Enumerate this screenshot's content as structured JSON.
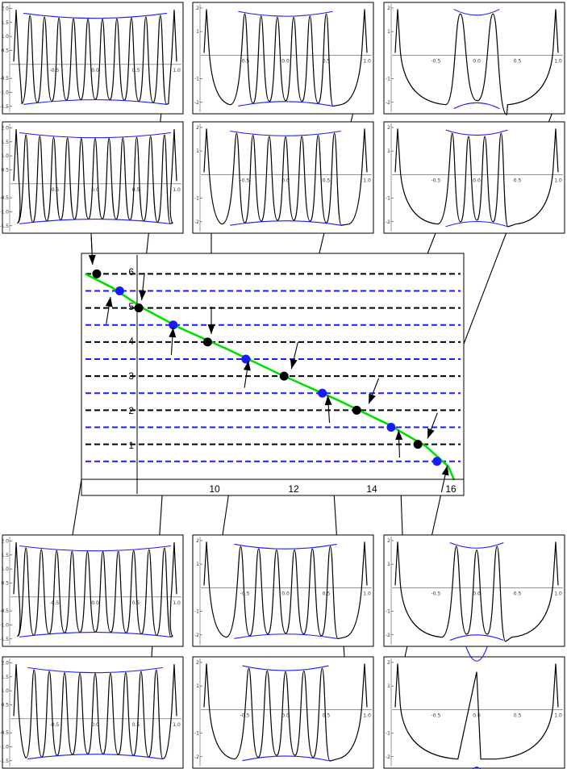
{
  "main_plot": {
    "x_ticks": [
      "10",
      "12",
      "14",
      "16"
    ],
    "y_ticks": [
      "1",
      "2",
      "3",
      "4",
      "5",
      "6"
    ]
  },
  "chart_data": {
    "type": "line",
    "xlim": [
      6.6,
      16.6
    ],
    "ylim": [
      -0.5,
      6.6
    ],
    "series": [
      {
        "values": [
          [
            6.7,
            6.0
          ],
          [
            7.4,
            5.6
          ],
          [
            8.2,
            5.0
          ],
          [
            9.2,
            4.4
          ],
          [
            10.4,
            3.8
          ],
          [
            11.8,
            3.05
          ],
          [
            13.3,
            2.3
          ],
          [
            14.6,
            1.6
          ],
          [
            15.6,
            0.95
          ],
          [
            16.2,
            0.35
          ],
          [
            16.35,
            -0.05
          ]
        ]
      }
    ],
    "black_levels": [
      1,
      2,
      3,
      4,
      5,
      6
    ],
    "blue_levels": [
      0.5,
      1.5,
      2.5,
      3.5,
      4.5,
      5.5
    ],
    "black_points": [
      [
        7.0,
        6.0
      ],
      [
        8.1,
        5.0
      ],
      [
        9.9,
        4.0
      ],
      [
        11.9,
        3.0
      ],
      [
        13.8,
        2.0
      ],
      [
        15.4,
        1.0
      ]
    ],
    "blue_points": [
      [
        7.6,
        5.5
      ],
      [
        9.0,
        4.5
      ],
      [
        10.9,
        3.5
      ],
      [
        12.9,
        2.5
      ],
      [
        14.7,
        1.5
      ],
      [
        15.9,
        0.5
      ]
    ]
  },
  "panels": [
    {
      "id": "p1",
      "n": 10,
      "half_width": 0.8,
      "y_labels": [
        "2.0",
        "1.5",
        "1.0",
        "0.5",
        "-0.5",
        "-1.0",
        "-1.5"
      ],
      "x_labels": [
        "-0.5",
        "0.0",
        "0.5",
        "1.0"
      ]
    },
    {
      "id": "p2",
      "n": 6,
      "half_width": 0.5,
      "y_labels": [
        "2",
        "1",
        "-1",
        "-2"
      ],
      "x_labels": [
        "-0.5",
        "0.0",
        "0.5",
        "1.0"
      ]
    },
    {
      "id": "p3",
      "n": 2,
      "half_width": 0.2,
      "y_labels": [
        "2",
        "1",
        "-1",
        "-2"
      ],
      "x_labels": [
        "-0.5",
        "0.0",
        "0.5",
        "1.0"
      ]
    },
    {
      "id": "p4",
      "n": 11,
      "half_width": 0.85,
      "y_labels": [
        "2.0",
        "1.5",
        "1.0",
        "0.5",
        "-0.5",
        "-1.0",
        "-1.5"
      ],
      "x_labels": [
        "-0.5",
        "0.0",
        "0.5",
        "1.0"
      ]
    },
    {
      "id": "p5",
      "n": 7,
      "half_width": 0.6,
      "y_labels": [
        "2",
        "1",
        "-1",
        "-2"
      ],
      "x_labels": [
        "-0.5",
        "0.0",
        "0.5",
        "1.0"
      ]
    },
    {
      "id": "p6",
      "n": 4,
      "half_width": 0.3,
      "y_labels": [
        "2",
        "1",
        "-1",
        "-2"
      ],
      "x_labels": [
        "-0.5",
        "0.0",
        "0.5",
        "1.0"
      ]
    },
    {
      "id": "p7",
      "n": 10,
      "half_width": 0.85,
      "y_labels": [
        "2.0",
        "1.5",
        "1.0",
        "0.5",
        "-0.5",
        "-1.0",
        "-1.5"
      ],
      "x_labels": [
        "-0.5",
        "0.0",
        "0.5",
        "1.0"
      ]
    },
    {
      "id": "p8",
      "n": 6,
      "half_width": 0.55,
      "y_labels": [
        "2",
        "1",
        "-1",
        "-2"
      ],
      "x_labels": [
        "-0.5",
        "0.0",
        "0.5",
        "1.0"
      ]
    },
    {
      "id": "p9",
      "n": 3,
      "half_width": 0.25,
      "y_labels": [
        "2",
        "1",
        "-1",
        "-2"
      ],
      "x_labels": [
        "-0.5",
        "0.0",
        "0.5",
        "1.0"
      ]
    },
    {
      "id": "p10",
      "n": 9,
      "half_width": 0.75,
      "y_labels": [
        "2.0",
        "1.5",
        "1.0",
        "0.5",
        "-0.5",
        "-1.0",
        "-1.5"
      ],
      "x_labels": [
        "-0.5",
        "0.0",
        "0.5",
        "1.0"
      ]
    },
    {
      "id": "p11",
      "n": 5,
      "half_width": 0.45,
      "y_labels": [
        "2",
        "1",
        "-1",
        "-2"
      ],
      "x_labels": [
        "-0.5",
        "0.0",
        "0.5",
        "1.0"
      ]
    },
    {
      "id": "p12",
      "n": 1,
      "half_width": 0.05,
      "y_labels": [
        "2",
        "1",
        "-1",
        "-2"
      ],
      "x_labels": [
        "-0.5",
        "0.0",
        "0.5",
        "1.0"
      ]
    }
  ]
}
